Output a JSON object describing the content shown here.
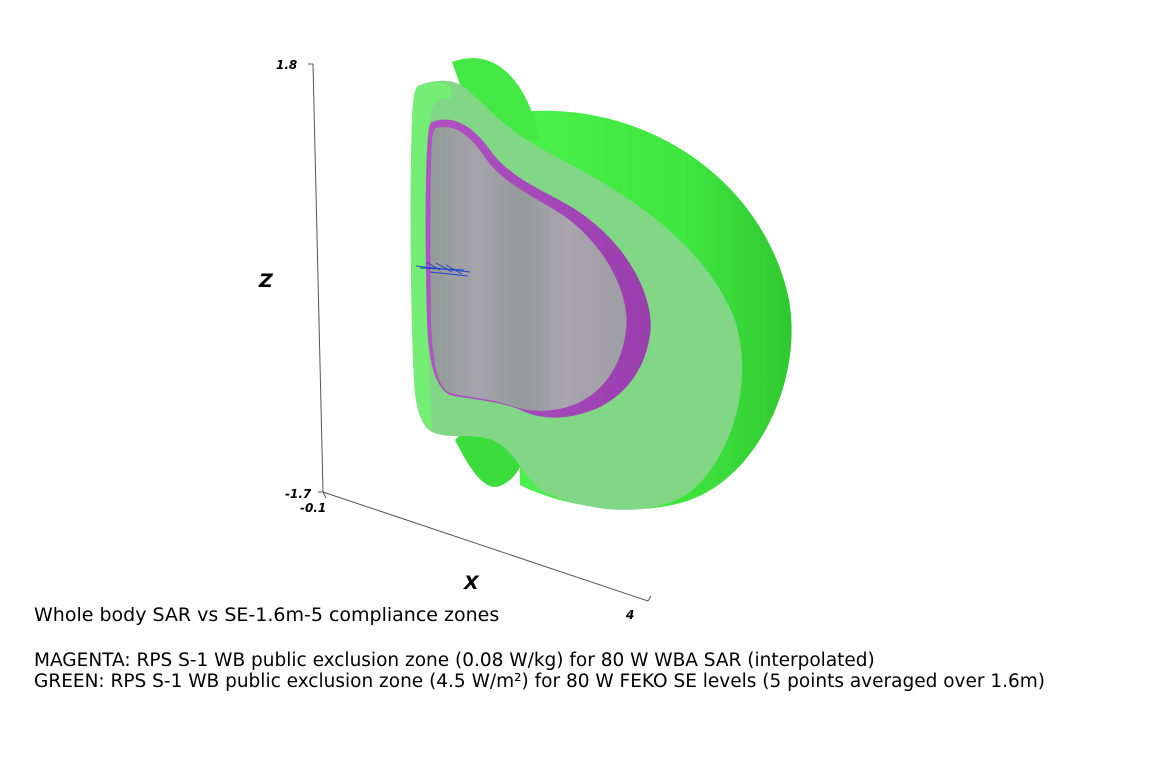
{
  "title": "Whole body SAR vs SE-1.6m-5 compliance zones",
  "axes": {
    "x": {
      "label": "X",
      "min": "-0.1",
      "max": "4"
    },
    "z": {
      "label": "Z",
      "min": "-1.7",
      "max": "1.8"
    }
  },
  "legend": {
    "magenta": "MAGENTA: RPS S-1 WB public exclusion zone (0.08 W/kg) for 80 W WBA SAR (interpolated)",
    "green": "GREEN: RPS S-1 WB public exclusion zone (4.5 W/m²) for 80 W FEKO SE levels (5 points averaged over 1.6m)"
  },
  "colors": {
    "green_zone": "#3ee63e",
    "green_translucent": "#7fd684",
    "magenta_zone": "#a648b8",
    "antenna": "#2244cc"
  }
}
